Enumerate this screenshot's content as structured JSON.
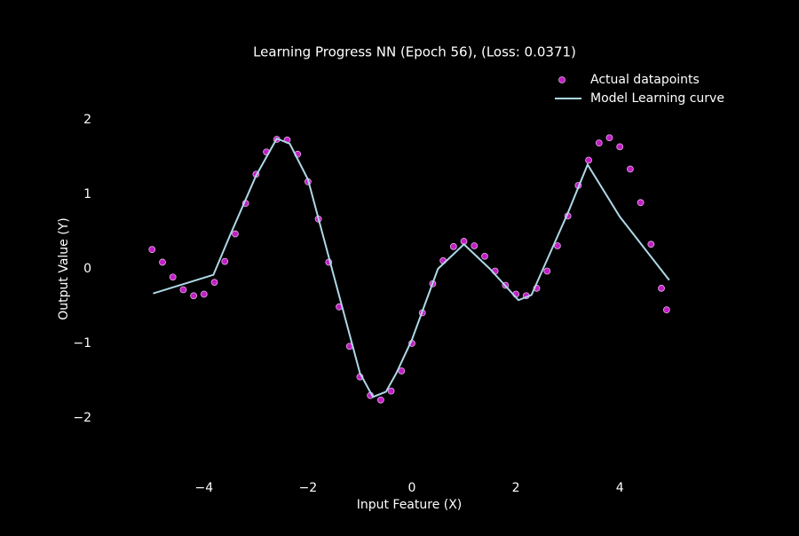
{
  "chart_data": {
    "type": "scatter",
    "title": "Learning Progress NN (Epoch 56), (Loss: 0.0371)",
    "x_label": "Input Feature (X)",
    "y_label": "Output Value (Y)",
    "xlim": [
      -5.5,
      5.5
    ],
    "ylim": [
      -2.8,
      2.8
    ],
    "xticks": [
      {
        "value": -4,
        "label": "−4"
      },
      {
        "value": -2,
        "label": "−2"
      },
      0,
      2,
      4
    ],
    "yticks": [
      {
        "value": -2,
        "label": "−2"
      },
      {
        "value": -1,
        "label": "−1"
      },
      0,
      1,
      2
    ],
    "grid": false,
    "legend": "upper right",
    "series": [
      {
        "name": "Actual datapoints",
        "type": "scatter",
        "color": "#c11fc4",
        "edgecolor": "#e6a9e8",
        "x": [
          -5.0,
          -4.8,
          -4.6,
          -4.4,
          -4.2,
          -4.0,
          -3.8,
          -3.6,
          -3.4,
          -3.2,
          -3.0,
          -2.8,
          -2.6,
          -2.4,
          -2.2,
          -2.0,
          -1.8,
          -1.6,
          -1.4,
          -1.2,
          -1.0,
          -0.8,
          -0.6,
          -0.4,
          -0.2,
          0.0,
          0.2,
          0.4,
          0.6,
          0.8,
          1.0,
          1.2,
          1.4,
          1.6,
          1.8,
          2.0,
          2.2,
          2.4,
          2.6,
          2.8,
          3.0,
          3.2,
          3.4,
          3.6,
          3.8,
          4.0,
          4.2,
          4.4,
          4.6,
          4.8,
          4.9
        ],
        "values": [
          0.26,
          0.09,
          -0.11,
          -0.28,
          -0.36,
          -0.34,
          -0.18,
          0.1,
          0.47,
          0.88,
          1.27,
          1.57,
          1.74,
          1.73,
          1.54,
          1.17,
          0.67,
          0.09,
          -0.51,
          -1.04,
          -1.45,
          -1.7,
          -1.76,
          -1.64,
          -1.37,
          -1.0,
          -0.59,
          -0.2,
          0.11,
          0.3,
          0.37,
          0.31,
          0.17,
          -0.03,
          -0.22,
          -0.34,
          -0.36,
          -0.26,
          -0.03,
          0.31,
          0.71,
          1.12,
          1.46,
          1.69,
          1.76,
          1.64,
          1.34,
          0.89,
          0.33,
          -0.26,
          -0.55
        ]
      },
      {
        "name": "Model Learning curve",
        "type": "line",
        "color": "#add8e6",
        "x": [
          -4.98,
          -3.82,
          -3.5,
          -3.0,
          -2.6,
          -2.35,
          -2.0,
          -1.5,
          -1.0,
          -0.75,
          -0.5,
          -0.3,
          0.0,
          0.5,
          1.0,
          1.5,
          2.05,
          2.3,
          3.0,
          3.38,
          4.0,
          4.95
        ],
        "values": [
          -0.33,
          -0.08,
          0.45,
          1.25,
          1.75,
          1.68,
          1.2,
          -0.1,
          -1.4,
          -1.72,
          -1.65,
          -1.4,
          -0.95,
          0.0,
          0.33,
          0.0,
          -0.42,
          -0.35,
          0.75,
          1.4,
          0.7,
          -0.15
        ]
      }
    ]
  }
}
